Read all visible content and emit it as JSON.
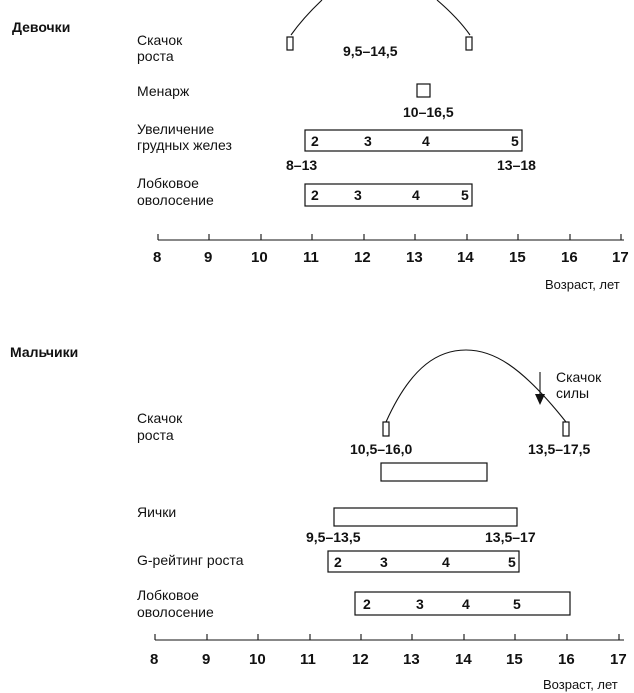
{
  "girls": {
    "title": "Девочки",
    "growth_label": [
      "Скачок",
      "роста"
    ],
    "growth_range": "9,5–14,5",
    "menarche_label": "Менарж",
    "menarche_range": "10–16,5",
    "breast_label": [
      "Увеличение",
      "грудных желез"
    ],
    "breast_stages": [
      "2",
      "3",
      "4",
      "5"
    ],
    "breast_start_range": "8–13",
    "breast_end_range": "13–18",
    "pubic_label": [
      "Лобковое",
      "оволосение"
    ],
    "pubic_stages": [
      "2",
      "3",
      "4",
      "5"
    ]
  },
  "boys": {
    "title": "Мальчики",
    "strength_label": [
      "Скачок",
      "силы"
    ],
    "growth_label": [
      "Скачок",
      "роста"
    ],
    "growth_start_range": "10,5–16,0",
    "growth_end_range": "13,5–17,5",
    "testes_label": "Яички",
    "testes_start_range": "9,5–13,5",
    "testes_end_range": "13,5–17",
    "g_label": "G-рейтинг роста",
    "g_stages": [
      "2",
      "3",
      "4",
      "5"
    ],
    "pubic_label": [
      "Лобковое",
      "оволосение"
    ],
    "pubic_stages": [
      "2",
      "3",
      "4",
      "5"
    ]
  },
  "axis": {
    "ticks": [
      "8",
      "9",
      "10",
      "11",
      "12",
      "13",
      "14",
      "15",
      "16",
      "17"
    ],
    "label": "Возраст, лет"
  }
}
